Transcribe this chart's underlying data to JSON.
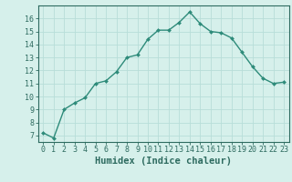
{
  "x": [
    0,
    1,
    2,
    3,
    4,
    5,
    6,
    7,
    8,
    9,
    10,
    11,
    12,
    13,
    14,
    15,
    16,
    17,
    18,
    19,
    20,
    21,
    22,
    23
  ],
  "y": [
    7.2,
    6.8,
    9.0,
    9.5,
    9.9,
    11.0,
    11.2,
    11.9,
    13.0,
    13.2,
    14.4,
    15.1,
    15.1,
    15.7,
    16.5,
    15.6,
    15.0,
    14.9,
    14.5,
    13.4,
    12.3,
    11.4,
    11.0,
    11.1
  ],
  "line_color": "#2e8b7a",
  "marker": "D",
  "marker_size": 2.0,
  "bg_color": "#d6f0eb",
  "grid_color": "#b8ddd8",
  "xlabel": "Humidex (Indice chaleur)",
  "xlim": [
    -0.5,
    23.5
  ],
  "ylim": [
    6.5,
    17.0
  ],
  "yticks": [
    7,
    8,
    9,
    10,
    11,
    12,
    13,
    14,
    15,
    16
  ],
  "xticks": [
    0,
    1,
    2,
    3,
    4,
    5,
    6,
    7,
    8,
    9,
    10,
    11,
    12,
    13,
    14,
    15,
    16,
    17,
    18,
    19,
    20,
    21,
    22,
    23
  ],
  "tick_label_fontsize": 6.0,
  "xlabel_fontsize": 7.5,
  "axis_color": "#2e6b60",
  "line_width": 1.0
}
